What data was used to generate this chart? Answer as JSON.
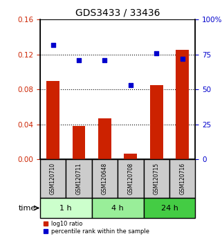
{
  "title": "GDS3433 / 33436",
  "categories": [
    "GSM120710",
    "GSM120711",
    "GSM120648",
    "GSM120708",
    "GSM120715",
    "GSM120716"
  ],
  "log10_ratio": [
    0.09,
    0.038,
    0.047,
    0.006,
    0.085,
    0.125
  ],
  "percentile_rank": [
    82,
    71,
    71,
    53,
    76,
    72
  ],
  "ylim_left": [
    0,
    0.16
  ],
  "ylim_right": [
    0,
    100
  ],
  "yticks_left": [
    0,
    0.04,
    0.08,
    0.12,
    0.16
  ],
  "yticks_right": [
    0,
    25,
    50,
    75,
    100
  ],
  "bar_color": "#cc2200",
  "dot_color": "#0000cc",
  "bar_width": 0.5,
  "groups": [
    {
      "label": "1 h",
      "indices": [
        0,
        1
      ],
      "color": "#ccffcc"
    },
    {
      "label": "4 h",
      "indices": [
        2,
        3
      ],
      "color": "#99ee99"
    },
    {
      "label": "24 h",
      "indices": [
        4,
        5
      ],
      "color": "#44cc44"
    }
  ],
  "sample_box_color": "#cccccc",
  "time_label": "time",
  "legend_bar_label": "log10 ratio",
  "legend_dot_label": "percentile rank within the sample",
  "background_color": "#ffffff"
}
